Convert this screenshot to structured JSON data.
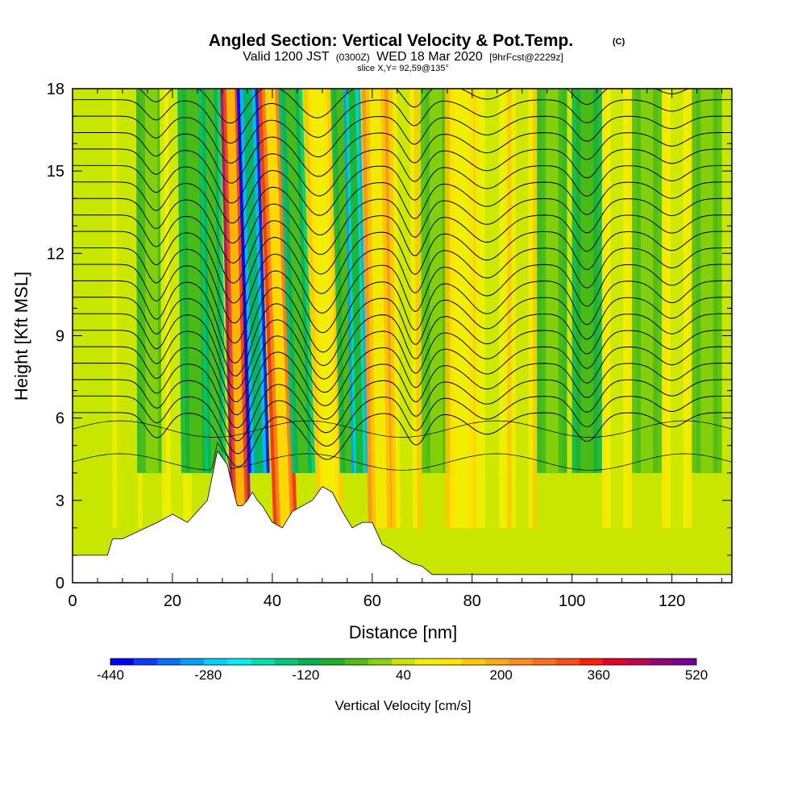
{
  "chart_data": {
    "type": "heatmap",
    "title": "Angled Section: Vertical Velocity & Pot.Temp.",
    "title_unit": "(C)",
    "subtitle_parts": [
      "Valid 1200 JST",
      "(0300Z)",
      "WED 18 Mar 2020",
      "[9hrFcst@2229z]"
    ],
    "slice_label": "slice X,Y= 92,59@135°",
    "xlabel": "Distance [nm]",
    "ylabel": "Height [Kft MSL]",
    "xlim": [
      0,
      132
    ],
    "ylim": [
      0,
      18
    ],
    "x_ticks": [
      0,
      20,
      40,
      60,
      80,
      100,
      120
    ],
    "y_ticks": [
      0,
      3,
      6,
      9,
      12,
      15,
      18
    ],
    "colorbar": {
      "label": "Vertical Velocity [cm/s]",
      "tick_labels": [
        -440,
        -280,
        -120,
        40,
        200,
        360,
        520
      ],
      "min": -440,
      "max": 520,
      "step": 40,
      "colors": [
        "#0000ff",
        "#0a3cff",
        "#0a6eff",
        "#00a0ff",
        "#00d2ff",
        "#00f0f0",
        "#00e0a8",
        "#00c878",
        "#00b450",
        "#20b028",
        "#50bc14",
        "#8cd20a",
        "#c8e600",
        "#f0f000",
        "#ffe600",
        "#ffc800",
        "#ffaa14",
        "#ff8c1e",
        "#ff6e1e",
        "#ff4b14",
        "#ff1e0a",
        "#e60028",
        "#c00050",
        "#9a0078",
        "#780096"
      ]
    },
    "velocity_bands": [
      {
        "x": 5,
        "value": 60,
        "width": 2.5
      },
      {
        "x": 11,
        "value": 100,
        "width": 2.5
      },
      {
        "x": 16,
        "value": -60,
        "width": 2.5
      },
      {
        "x": 21,
        "value": 110,
        "width": 2.5
      },
      {
        "x": 25,
        "value": -90,
        "width": 2.5
      },
      {
        "x": 29,
        "value": -150,
        "width": 1.8
      },
      {
        "x": 34,
        "value": 500,
        "width": 1.7
      },
      {
        "x": 38,
        "value": -420,
        "width": 1.8
      },
      {
        "x": 43,
        "value": 380,
        "width": 2.0
      },
      {
        "x": 47,
        "value": -160,
        "width": 2.0
      },
      {
        "x": 52,
        "value": 180,
        "width": 2.2
      },
      {
        "x": 56,
        "value": -120,
        "width": 1.6
      },
      {
        "x": 58,
        "value": -300,
        "width": 1.4
      },
      {
        "x": 62,
        "value": 260,
        "width": 2.2
      },
      {
        "x": 67,
        "value": 160,
        "width": 2.5
      },
      {
        "x": 73,
        "value": -40,
        "width": 2.5
      },
      {
        "x": 78,
        "value": 180,
        "width": 2.8
      },
      {
        "x": 84,
        "value": 110,
        "width": 2.8
      },
      {
        "x": 90,
        "value": 160,
        "width": 2.5
      },
      {
        "x": 96,
        "value": -50,
        "width": 2.5
      },
      {
        "x": 103,
        "value": -100,
        "width": 2.5
      },
      {
        "x": 109,
        "value": 150,
        "width": 2.5
      },
      {
        "x": 115,
        "value": -40,
        "width": 2.5
      },
      {
        "x": 121,
        "value": 140,
        "width": 2.5
      },
      {
        "x": 127,
        "value": -30,
        "width": 2.5
      }
    ],
    "terrain": {
      "x": [
        0,
        7,
        8,
        10,
        17,
        20,
        23,
        27,
        29,
        31,
        32,
        33,
        34,
        35,
        36,
        37,
        38,
        40,
        42,
        44,
        46,
        48,
        50,
        52,
        54,
        56,
        58,
        60,
        62,
        64,
        66,
        68,
        70,
        72,
        74,
        80,
        90,
        100,
        110,
        120,
        130,
        132
      ],
      "height": [
        1.0,
        1.0,
        1.6,
        1.6,
        2.2,
        2.5,
        2.2,
        3.0,
        4.8,
        4.3,
        3.5,
        2.8,
        2.8,
        3.0,
        3.3,
        3.0,
        2.8,
        2.2,
        2.0,
        2.6,
        2.8,
        3.0,
        3.5,
        3.3,
        2.6,
        2.0,
        2.2,
        2.2,
        1.4,
        1.2,
        0.9,
        0.7,
        0.6,
        0.3,
        0.3,
        0.3,
        0.3,
        0.3,
        0.3,
        0.3,
        0.3,
        0.3
      ]
    },
    "isentropes": {
      "levels_kft": [
        6.2,
        6.8,
        7.4,
        8.0,
        8.6,
        9.2,
        9.8,
        10.4,
        11.0,
        11.6,
        12.2,
        12.8,
        13.4,
        14.0,
        14.6,
        15.2,
        15.8,
        16.4,
        17.0,
        17.6,
        18.2
      ],
      "wave_centers": [
        {
          "x": 34,
          "amplitude": 3.0,
          "width": 4.5
        },
        {
          "x": 52,
          "amplitude": 2.6,
          "width": 5.5
        },
        {
          "x": 69,
          "amplitude": 1.8,
          "width": 3.0
        },
        {
          "x": 83,
          "amplitude": 1.2,
          "width": 5.0
        },
        {
          "x": 103,
          "amplitude": 1.6,
          "width": 3.5
        },
        {
          "x": 120,
          "amplitude": 0.8,
          "width": 4.0
        },
        {
          "x": 17,
          "amplitude": 1.4,
          "width": 3.0
        }
      ]
    },
    "grid": false,
    "legend": "colorbar-bottom"
  }
}
